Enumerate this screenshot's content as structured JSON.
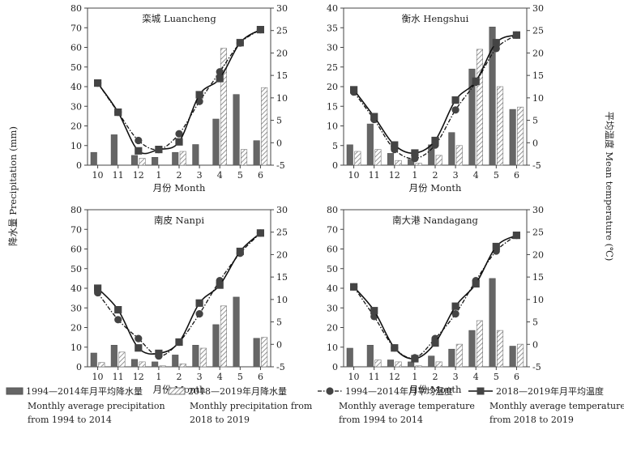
{
  "ylabel_left": "降水量 Precipitation (mm)",
  "ylabel_right": "平均温度 Mean temperature (℃)",
  "legend": [
    {
      "key": "precip_hist",
      "line1": "1994—2014年月平均降水量",
      "line2": "Monthly average precipitation",
      "line3": "from 1994 to 2014"
    },
    {
      "key": "precip_recent",
      "line1": "2018—2019年月降水量",
      "line2": "Monthly precipitation from",
      "line3": "2018 to 2019"
    },
    {
      "key": "temp_hist",
      "line1": "1994—2014年月平均温度",
      "line2": "Monthly average temperature",
      "line3": "from 1994 to 2014"
    },
    {
      "key": "temp_recent",
      "line1": "2018—2019年月平均温度",
      "line2": "Monthly average temperature",
      "line3": "from 2018 to 2019"
    }
  ],
  "chart_data": [
    {
      "type": "bar+line",
      "title": "栾城 Luancheng",
      "xlabel": "月份 Month",
      "categories": [
        "10",
        "11",
        "12",
        "1",
        "2",
        "3",
        "4",
        "5",
        "6"
      ],
      "ylim_left": [
        0,
        80
      ],
      "yticks_left": [
        0,
        10,
        20,
        30,
        40,
        50,
        60,
        70,
        80
      ],
      "ylim_right": [
        -5,
        30
      ],
      "yticks_right": [
        -5,
        0,
        5,
        10,
        15,
        20,
        25,
        30
      ],
      "series": [
        {
          "name": "1994—2014年月平均降水量",
          "kind": "bar",
          "axis": "left",
          "values": [
            6.5,
            15.5,
            5,
            4,
            6.5,
            10.5,
            23.5,
            36,
            12.5
          ]
        },
        {
          "name": "2018—2019年月降水量",
          "kind": "bar",
          "axis": "left",
          "values": [
            0,
            0,
            3.5,
            0,
            7,
            0,
            59.5,
            8,
            39.5
          ]
        },
        {
          "name": "1994—2014年月平均温度",
          "kind": "line",
          "axis": "right",
          "values": [
            13.3,
            6.8,
            0.5,
            -1.5,
            2,
            9.2,
            15.8,
            22.2,
            25.2
          ]
        },
        {
          "name": "2018—2019年月平均温度",
          "kind": "line",
          "axis": "right",
          "values": [
            13.3,
            6.8,
            -1.8,
            -1.5,
            0.2,
            10.7,
            14.3,
            22.3,
            25.2
          ]
        }
      ]
    },
    {
      "type": "bar+line",
      "title": "衡水 Hengshui",
      "xlabel": "月份 Month",
      "categories": [
        "10",
        "11",
        "12",
        "1",
        "2",
        "3",
        "4",
        "5",
        "6"
      ],
      "ylim_left": [
        0,
        40
      ],
      "yticks_left": [
        0,
        5,
        10,
        15,
        20,
        25,
        30,
        35,
        40
      ],
      "ylim_right": [
        -5,
        30
      ],
      "yticks_right": [
        -5,
        0,
        5,
        10,
        15,
        20,
        25,
        30
      ],
      "series": [
        {
          "name": "1994—2014年月平均降水量",
          "kind": "bar",
          "axis": "left",
          "values": [
            5.2,
            10.5,
            3,
            1.5,
            5.2,
            8.3,
            24.5,
            35.2,
            14.2
          ]
        },
        {
          "name": "2018—2019年月降水量",
          "kind": "bar",
          "axis": "left",
          "values": [
            3.5,
            4,
            1.2,
            0.5,
            2.5,
            5,
            29.5,
            20,
            14.8
          ]
        },
        {
          "name": "1994—2014年月平均温度",
          "kind": "line",
          "axis": "right",
          "values": [
            11.3,
            5.2,
            -1.5,
            -3.5,
            -0.5,
            7.3,
            13.5,
            21,
            24
          ]
        },
        {
          "name": "2018—2019年月平均温度",
          "kind": "line",
          "axis": "right",
          "values": [
            11.8,
            5.8,
            -0.5,
            -2.3,
            0.5,
            9.5,
            13.7,
            22.3,
            24
          ]
        }
      ]
    },
    {
      "type": "bar+line",
      "title": "南皮 Nanpi",
      "xlabel": "月份 Month",
      "categories": [
        "10",
        "11",
        "12",
        "1",
        "2",
        "3",
        "4",
        "5",
        "6"
      ],
      "ylim_left": [
        0,
        80
      ],
      "yticks_left": [
        0,
        10,
        20,
        30,
        40,
        50,
        60,
        70,
        80
      ],
      "ylim_right": [
        -5,
        30
      ],
      "yticks_right": [
        -5,
        0,
        5,
        10,
        15,
        20,
        25,
        30
      ],
      "series": [
        {
          "name": "1994—2014年月平均降水量",
          "kind": "bar",
          "axis": "left",
          "values": [
            7,
            11,
            3.8,
            2.5,
            6,
            11,
            21.5,
            35.5,
            14.5
          ]
        },
        {
          "name": "2018—2019年月降水量",
          "kind": "bar",
          "axis": "left",
          "values": [
            2.2,
            7.5,
            2.5,
            0.5,
            1.5,
            9.5,
            31,
            0,
            15
          ]
        },
        {
          "name": "1994—2014年月平均温度",
          "kind": "line",
          "axis": "right",
          "values": [
            11.5,
            5.5,
            1.3,
            -2.6,
            0.5,
            6.8,
            14.2,
            20.3,
            24.8
          ]
        },
        {
          "name": "2018—2019年月平均温度",
          "kind": "line",
          "axis": "right",
          "values": [
            12.5,
            7.7,
            -0.8,
            -2,
            0.5,
            9.2,
            13.2,
            20.7,
            24.8
          ]
        }
      ]
    },
    {
      "type": "bar+line",
      "title": "南大港 Nandagang",
      "xlabel": "月份 Month",
      "categories": [
        "10",
        "11",
        "12",
        "1",
        "2",
        "3",
        "4",
        "5",
        "6"
      ],
      "ylim_left": [
        0,
        80
      ],
      "yticks_left": [
        0,
        10,
        20,
        30,
        40,
        50,
        60,
        70,
        80
      ],
      "ylim_right": [
        -5,
        30
      ],
      "yticks_right": [
        -5,
        0,
        5,
        10,
        15,
        20,
        25,
        30
      ],
      "series": [
        {
          "name": "1994—2014年月平均降水量",
          "kind": "bar",
          "axis": "left",
          "values": [
            9.5,
            11,
            3.5,
            2.5,
            5.5,
            9,
            18.5,
            45,
            10.5
          ]
        },
        {
          "name": "2018—2019年月降水量",
          "kind": "bar",
          "axis": "left",
          "values": [
            0,
            3.5,
            2.5,
            0.5,
            2.5,
            11.5,
            23.5,
            18.5,
            11.5
          ]
        },
        {
          "name": "1994—2014年月平均温度",
          "kind": "line",
          "axis": "right",
          "values": [
            12.8,
            6.2,
            -0.8,
            -3,
            1.3,
            6.8,
            14.2,
            20.8,
            24.3
          ]
        },
        {
          "name": "2018—2019年月平均温度",
          "kind": "line",
          "axis": "right",
          "values": [
            12.8,
            7.5,
            -0.8,
            -3.2,
            0.3,
            8.5,
            13.5,
            21.8,
            24.3
          ]
        }
      ]
    }
  ]
}
